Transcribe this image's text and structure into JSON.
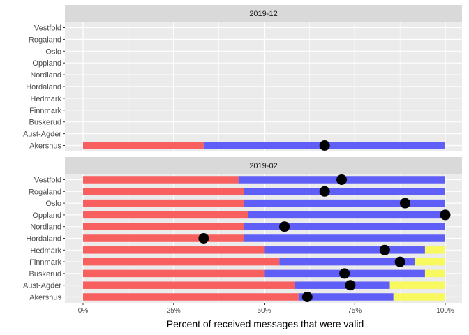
{
  "colors": {
    "panel_bg": "#ebebeb",
    "strip_bg": "#d9d9d9",
    "grid": "#ffffff",
    "red": "#f8605f",
    "blue": "#5f5ff8",
    "yellow": "#f8f85f",
    "point": "#000000"
  },
  "chart_data": {
    "type": "bar",
    "orientation": "horizontal",
    "stacked": true,
    "xlabel": "Percent of received messages that were valid",
    "x_ticks": [
      "0%",
      "25%",
      "50%",
      "75%",
      "100%"
    ],
    "xlim": [
      0,
      100
    ],
    "categories": [
      "Vestfold",
      "Rogaland",
      "Oslo",
      "Oppland",
      "Nordland",
      "Hordaland",
      "Hedmark",
      "Finnmark",
      "Buskerud",
      "Aust-Agder",
      "Akershus"
    ],
    "panels": [
      {
        "label": "2019-12",
        "rows": [
          {
            "category": "Akershus",
            "red": 33.3,
            "blue": 66.7,
            "yellow": 0,
            "point": 66.7
          }
        ]
      },
      {
        "label": "2019-02",
        "rows": [
          {
            "category": "Vestfold",
            "red": 42.9,
            "blue": 57.1,
            "yellow": 0,
            "point": 71.4
          },
          {
            "category": "Rogaland",
            "red": 44.4,
            "blue": 55.6,
            "yellow": 0,
            "point": 66.7
          },
          {
            "category": "Oslo",
            "red": 44.4,
            "blue": 55.6,
            "yellow": 0,
            "point": 88.9
          },
          {
            "category": "Oppland",
            "red": 45.5,
            "blue": 54.5,
            "yellow": 0,
            "point": 100
          },
          {
            "category": "Nordland",
            "red": 44.4,
            "blue": 55.6,
            "yellow": 0,
            "point": 55.6
          },
          {
            "category": "Hordaland",
            "red": 44.4,
            "blue": 55.6,
            "yellow": 0,
            "point": 33.3
          },
          {
            "category": "Hedmark",
            "red": 50.0,
            "blue": 44.4,
            "yellow": 5.6,
            "point": 83.3
          },
          {
            "category": "Finnmark",
            "red": 54.2,
            "blue": 37.5,
            "yellow": 8.3,
            "point": 87.5
          },
          {
            "category": "Buskerud",
            "red": 50.0,
            "blue": 44.4,
            "yellow": 5.6,
            "point": 72.2
          },
          {
            "category": "Aust-Agder",
            "red": 58.5,
            "blue": 26.2,
            "yellow": 15.3,
            "point": 73.8
          },
          {
            "category": "Akershus",
            "red": 59.5,
            "blue": 26.2,
            "yellow": 14.3,
            "point": 61.9
          }
        ]
      }
    ]
  }
}
